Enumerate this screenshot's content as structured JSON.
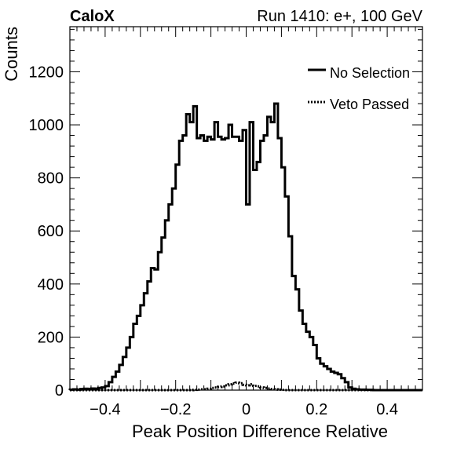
{
  "header": {
    "experiment": "CaloX",
    "run_info": "Run 1410: e+, 100 GeV"
  },
  "chart_data": {
    "type": "line",
    "title": "",
    "xlabel": "Peak Position Difference Relative",
    "ylabel": "Counts",
    "xlim": [
      -0.5,
      0.5
    ],
    "ylim": [
      0,
      1370
    ],
    "grid": false,
    "legend_position": "top-right",
    "x_ticks": [
      -0.4,
      -0.2,
      0,
      0.2,
      0.4
    ],
    "x_tick_labels": [
      "−0.4",
      "−0.2",
      "0",
      "0.2",
      "0.4"
    ],
    "y_ticks": [
      0,
      200,
      400,
      600,
      800,
      1000,
      1200
    ],
    "y_tick_labels": [
      "0",
      "200",
      "400",
      "600",
      "800",
      "1000",
      "1200"
    ],
    "series": [
      {
        "name": "No Selection",
        "style": "solid",
        "color": "#000000",
        "bin_width": 0.01,
        "x": [
          -0.5,
          -0.49,
          -0.48,
          -0.47,
          -0.46,
          -0.45,
          -0.44,
          -0.43,
          -0.42,
          -0.41,
          -0.4,
          -0.39,
          -0.38,
          -0.37,
          -0.36,
          -0.35,
          -0.34,
          -0.33,
          -0.32,
          -0.31,
          -0.3,
          -0.29,
          -0.28,
          -0.27,
          -0.26,
          -0.25,
          -0.24,
          -0.23,
          -0.22,
          -0.21,
          -0.2,
          -0.19,
          -0.18,
          -0.17,
          -0.16,
          -0.15,
          -0.14,
          -0.13,
          -0.12,
          -0.11,
          -0.1,
          -0.09,
          -0.08,
          -0.07,
          -0.06,
          -0.05,
          -0.04,
          -0.03,
          -0.02,
          -0.01,
          0,
          0.01,
          0.02,
          0.03,
          0.04,
          0.05,
          0.06,
          0.07,
          0.08,
          0.09,
          0.1,
          0.11,
          0.12,
          0.13,
          0.14,
          0.15,
          0.16,
          0.17,
          0.18,
          0.19,
          0.2,
          0.21,
          0.22,
          0.23,
          0.24,
          0.25,
          0.26,
          0.27,
          0.28,
          0.29,
          0.3,
          0.31,
          0.32,
          0.33,
          0.34,
          0.35,
          0.36,
          0.37,
          0.38,
          0.39,
          0.4,
          0.41,
          0.42,
          0.43,
          0.44,
          0.45,
          0.46,
          0.47,
          0.48,
          0.49
        ],
        "values": [
          2,
          3,
          2,
          4,
          5,
          4,
          6,
          5,
          8,
          10,
          15,
          30,
          50,
          70,
          95,
          125,
          160,
          200,
          250,
          280,
          320,
          365,
          410,
          460,
          455,
          520,
          575,
          640,
          700,
          760,
          850,
          940,
          960,
          1040,
          1010,
          1070,
          950,
          960,
          940,
          955,
          945,
          1010,
          955,
          945,
          950,
          1000,
          955,
          955,
          940,
          980,
          700,
          1010,
          830,
          860,
          940,
          960,
          1030,
          1010,
          1080,
          950,
          840,
          730,
          580,
          430,
          380,
          300,
          250,
          220,
          200,
          170,
          120,
          100,
          90,
          80,
          70,
          65,
          60,
          45,
          30,
          10,
          5,
          3,
          2,
          2,
          1,
          1,
          0,
          0,
          0,
          0,
          0,
          0,
          0,
          0,
          0,
          0,
          0,
          0,
          0,
          0
        ]
      },
      {
        "name": "Veto Passed",
        "style": "dotted",
        "color": "#000000",
        "bin_width": 0.01,
        "x": [
          -0.5,
          -0.49,
          -0.48,
          -0.47,
          -0.46,
          -0.45,
          -0.44,
          -0.43,
          -0.42,
          -0.41,
          -0.4,
          -0.39,
          -0.38,
          -0.37,
          -0.36,
          -0.35,
          -0.34,
          -0.33,
          -0.32,
          -0.31,
          -0.3,
          -0.29,
          -0.28,
          -0.27,
          -0.26,
          -0.25,
          -0.24,
          -0.23,
          -0.22,
          -0.21,
          -0.2,
          -0.19,
          -0.18,
          -0.17,
          -0.16,
          -0.15,
          -0.14,
          -0.13,
          -0.12,
          -0.11,
          -0.1,
          -0.09,
          -0.08,
          -0.07,
          -0.06,
          -0.05,
          -0.04,
          -0.03,
          -0.02,
          -0.01,
          0,
          0.01,
          0.02,
          0.03,
          0.04,
          0.05,
          0.06,
          0.07,
          0.08,
          0.09,
          0.1,
          0.11,
          0.12,
          0.13,
          0.14,
          0.15,
          0.16,
          0.17,
          0.18,
          0.19,
          0.2,
          0.21,
          0.22,
          0.23,
          0.24,
          0.25,
          0.26,
          0.27,
          0.28,
          0.29,
          0.3,
          0.31,
          0.32,
          0.33,
          0.34,
          0.35,
          0.36,
          0.37,
          0.38,
          0.39,
          0.4,
          0.41,
          0.42,
          0.43,
          0.44,
          0.45,
          0.46,
          0.47,
          0.48,
          0.49
        ],
        "values": [
          0,
          0,
          0,
          0,
          0,
          0,
          0,
          0,
          0,
          0,
          0,
          0,
          0,
          0,
          0,
          0,
          0,
          0,
          0,
          0,
          0,
          0,
          0,
          0,
          0,
          0,
          0,
          0,
          0,
          0,
          0,
          0,
          0,
          0,
          0,
          1,
          2,
          3,
          3,
          5,
          8,
          10,
          12,
          14,
          18,
          22,
          25,
          28,
          26,
          20,
          18,
          22,
          16,
          14,
          10,
          8,
          6,
          4,
          3,
          2,
          1,
          0,
          0,
          0,
          0,
          0,
          0,
          0,
          0,
          0,
          0,
          0,
          0,
          0,
          0,
          0,
          0,
          0,
          0,
          0,
          0,
          0,
          0,
          0,
          0,
          0,
          0,
          0,
          0,
          0,
          0,
          0,
          0,
          0,
          0,
          0,
          0,
          0,
          0,
          0
        ]
      }
    ]
  }
}
